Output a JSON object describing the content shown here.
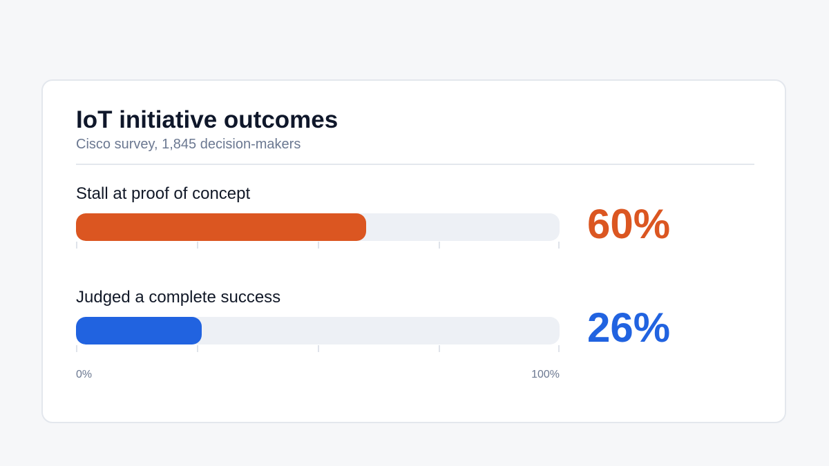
{
  "title": "IoT initiative outcomes",
  "subtitle": "Cisco survey, 1,845 decision-makers",
  "chart_data": {
    "type": "bar",
    "orientation": "horizontal",
    "categories": [
      "Stall at proof of concept",
      "Judged a complete success"
    ],
    "values": [
      60,
      26
    ],
    "value_labels": [
      "60%",
      "26%"
    ],
    "colors": [
      "#db5621",
      "#2163e0"
    ],
    "xlim": [
      0,
      100
    ],
    "axis_labels": {
      "min": "0%",
      "max": "100%"
    },
    "tick_values": [
      0,
      25,
      50,
      75,
      100
    ],
    "grid": false,
    "legend": "none"
  }
}
